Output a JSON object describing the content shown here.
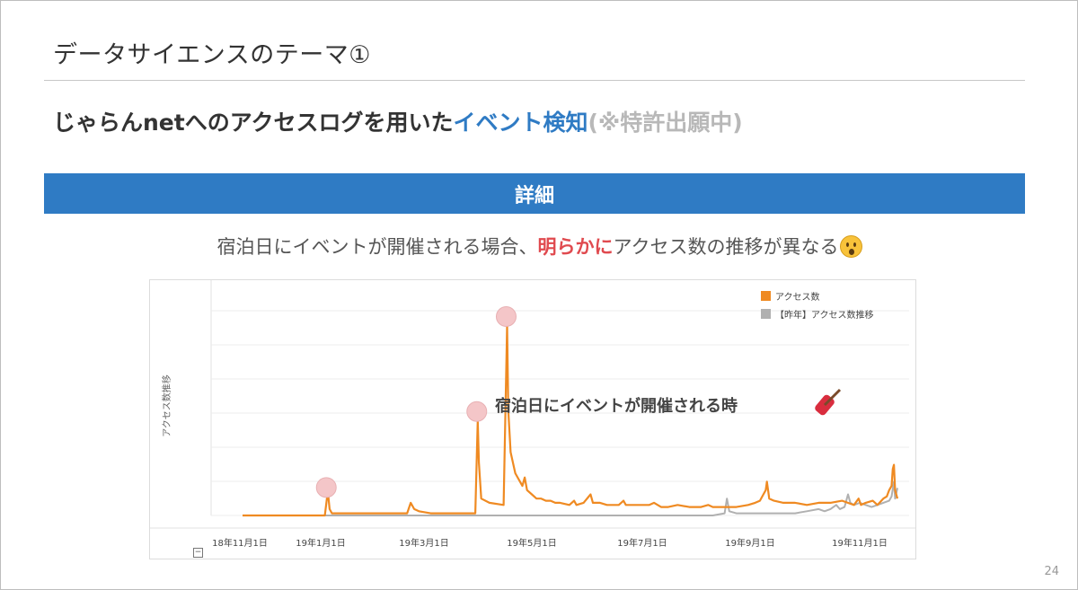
{
  "slide": {
    "title": "データサイエンスのテーマ①",
    "subtitle_prefix": "じゃらんnetへのアクセスログを用いた",
    "subtitle_highlight": "イベント検知",
    "subtitle_note": "(※特許出願中)",
    "banner": "詳細",
    "desc_prefix": "宿泊日にイベントが開催される場合、",
    "desc_highlight": "明らかに",
    "desc_suffix": "アクセス数の推移が異なる",
    "page_number": "24",
    "colors": {
      "accent_blue": "#2f7bc4",
      "highlight_red": "#e04a4f",
      "note_gray": "#b8b8b8"
    }
  },
  "chart_data": {
    "type": "line",
    "ylabel": "アクセス数推移",
    "annotation": "宿泊日にイベントが開催される時",
    "x_ticks": [
      "18年11月1日",
      "19年1月1日",
      "19年3月1日",
      "19年5月1日",
      "19年7月1日",
      "19年9月1日",
      "19年11月1日"
    ],
    "legend_position": "top-right",
    "grid": true,
    "series": [
      {
        "name": "アクセス数",
        "color": "#ef8a22",
        "points": [
          [
            0,
            0
          ],
          [
            60,
            0
          ],
          [
            70,
            0
          ],
          [
            72,
            0.09
          ],
          [
            73,
            0.09
          ],
          [
            74,
            0.03
          ],
          [
            76,
            0.01
          ],
          [
            130,
            0.01
          ],
          [
            140,
            0.01
          ],
          [
            143,
            0.06
          ],
          [
            146,
            0.03
          ],
          [
            150,
            0.02
          ],
          [
            160,
            0.01
          ],
          [
            190,
            0.01
          ],
          [
            198,
            0.01
          ],
          [
            200,
            0.45
          ],
          [
            201,
            0.25
          ],
          [
            203,
            0.08
          ],
          [
            210,
            0.06
          ],
          [
            222,
            0.05
          ],
          [
            225,
            0.9
          ],
          [
            226,
            0.5
          ],
          [
            228,
            0.3
          ],
          [
            232,
            0.2
          ],
          [
            238,
            0.14
          ],
          [
            240,
            0.18
          ],
          [
            242,
            0.12
          ],
          [
            246,
            0.1
          ],
          [
            250,
            0.08
          ],
          [
            254,
            0.08
          ],
          [
            258,
            0.07
          ],
          [
            262,
            0.07
          ],
          [
            266,
            0.06
          ],
          [
            270,
            0.06
          ],
          [
            278,
            0.05
          ],
          [
            282,
            0.07
          ],
          [
            284,
            0.05
          ],
          [
            290,
            0.06
          ],
          [
            296,
            0.1
          ],
          [
            298,
            0.06
          ],
          [
            304,
            0.06
          ],
          [
            310,
            0.05
          ],
          [
            320,
            0.05
          ],
          [
            324,
            0.07
          ],
          [
            326,
            0.05
          ],
          [
            330,
            0.05
          ],
          [
            340,
            0.05
          ],
          [
            346,
            0.05
          ],
          [
            350,
            0.06
          ],
          [
            356,
            0.04
          ],
          [
            362,
            0.04
          ],
          [
            370,
            0.05
          ],
          [
            380,
            0.04
          ],
          [
            390,
            0.04
          ],
          [
            396,
            0.05
          ],
          [
            400,
            0.04
          ],
          [
            410,
            0.04
          ],
          [
            420,
            0.04
          ],
          [
            430,
            0.05
          ],
          [
            436,
            0.06
          ],
          [
            440,
            0.07
          ],
          [
            443,
            0.1
          ],
          [
            445,
            0.12
          ],
          [
            446,
            0.16
          ],
          [
            448,
            0.08
          ],
          [
            452,
            0.07
          ],
          [
            460,
            0.06
          ],
          [
            470,
            0.06
          ],
          [
            480,
            0.05
          ],
          [
            490,
            0.06
          ],
          [
            500,
            0.06
          ],
          [
            510,
            0.07
          ],
          [
            520,
            0.05
          ],
          [
            524,
            0.08
          ],
          [
            526,
            0.05
          ],
          [
            530,
            0.06
          ],
          [
            536,
            0.07
          ],
          [
            540,
            0.05
          ],
          [
            545,
            0.08
          ],
          [
            548,
            0.09
          ],
          [
            550,
            0.12
          ],
          [
            552,
            0.14
          ],
          [
            553,
            0.22
          ],
          [
            554,
            0.24
          ],
          [
            555,
            0.12
          ],
          [
            557,
            0.08
          ]
        ]
      },
      {
        "name": "【昨年】アクセス数推移",
        "color": "#b0b0b0",
        "points": [
          [
            0,
            0
          ],
          [
            100,
            0
          ],
          [
            200,
            0
          ],
          [
            300,
            0
          ],
          [
            400,
            0
          ],
          [
            410,
            0.01
          ],
          [
            412,
            0.08
          ],
          [
            414,
            0.02
          ],
          [
            420,
            0.01
          ],
          [
            440,
            0.01
          ],
          [
            460,
            0.01
          ],
          [
            470,
            0.01
          ],
          [
            480,
            0.02
          ],
          [
            490,
            0.03
          ],
          [
            495,
            0.02
          ],
          [
            500,
            0.03
          ],
          [
            505,
            0.05
          ],
          [
            508,
            0.03
          ],
          [
            512,
            0.04
          ],
          [
            515,
            0.1
          ],
          [
            517,
            0.06
          ],
          [
            520,
            0.05
          ],
          [
            525,
            0.06
          ],
          [
            530,
            0.05
          ],
          [
            535,
            0.04
          ],
          [
            540,
            0.05
          ],
          [
            545,
            0.06
          ],
          [
            550,
            0.07
          ],
          [
            552,
            0.09
          ],
          [
            554,
            0.16
          ],
          [
            555,
            0.08
          ],
          [
            557,
            0.13
          ]
        ]
      }
    ],
    "markers": [
      [
        72,
        0.09
      ],
      [
        200,
        0.45
      ],
      [
        225,
        0.9
      ]
    ]
  }
}
